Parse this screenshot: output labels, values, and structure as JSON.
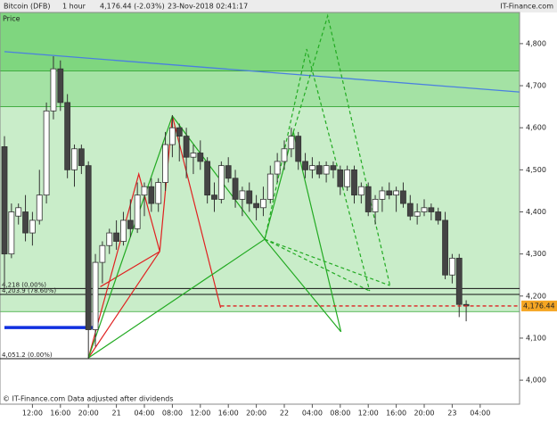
{
  "header": {
    "instrument": "Bitcoin (DFB)",
    "interval": "1 hour",
    "quote": "4,176.44 (-2.03%)",
    "timestamp": "23-Nov-2018 02:41:17",
    "brand": "IT-Finance.com"
  },
  "chart_data": {
    "type": "candlestick",
    "panel_label": "Price",
    "footer": "© IT-Finance.com  Data adjusted after dividends",
    "categories": [
      null,
      null,
      null,
      null,
      "12:00",
      null,
      null,
      null,
      "16:00",
      null,
      null,
      null,
      "20:00",
      null,
      null,
      null,
      "21",
      null,
      null,
      null,
      "04:00",
      null,
      null,
      null,
      "08:00",
      null,
      null,
      null,
      "12:00",
      null,
      null,
      null,
      "16:00",
      null,
      null,
      null,
      "20:00",
      null,
      null,
      null,
      "22",
      null,
      null,
      null,
      "04:00",
      null,
      null,
      null,
      "08:00",
      null,
      null,
      null,
      "12:00",
      null,
      null,
      null,
      "16:00",
      null,
      null,
      null,
      "20:00",
      null,
      null,
      null,
      "23",
      null,
      null,
      null,
      "04:00"
    ],
    "open": [
      4555,
      4300,
      4390,
      4400,
      4350,
      4380,
      4440,
      4640,
      4740,
      4660,
      4500,
      4550,
      4510,
      4120,
      4280,
      4320,
      4350,
      4330,
      4380,
      4360,
      4440,
      4460,
      4420,
      4470,
      4560,
      4600,
      4580,
      4530,
      4540,
      4520,
      4440,
      4430,
      4510,
      4480,
      4430,
      4450,
      4420,
      4410,
      4430,
      4490,
      4520,
      4550,
      4580,
      4520,
      4500,
      4510,
      4490,
      4510,
      4500,
      4460,
      4500,
      4440,
      4460,
      4400,
      4430,
      4450,
      4440,
      4450,
      4420,
      4390,
      4400,
      4410,
      4400,
      4380,
      4250,
      4290,
      4180,
      null,
      null
    ],
    "high": [
      4580,
      4420,
      4420,
      4440,
      4400,
      4500,
      4660,
      4770,
      4760,
      4680,
      4560,
      4560,
      4520,
      4300,
      4330,
      4360,
      4380,
      4400,
      4430,
      4470,
      4470,
      4480,
      4480,
      4590,
      4630,
      4610,
      4600,
      4560,
      4570,
      4530,
      4470,
      4520,
      4530,
      4500,
      4460,
      4470,
      4440,
      4460,
      4510,
      4540,
      4570,
      4600,
      4590,
      4540,
      4530,
      4520,
      4520,
      4520,
      4510,
      4510,
      4510,
      4470,
      4470,
      4440,
      4460,
      4470,
      4460,
      4470,
      4440,
      4420,
      4430,
      4420,
      4410,
      4400,
      4300,
      4300,
      4190,
      null,
      null
    ],
    "low": [
      4215,
      4290,
      4370,
      4330,
      4320,
      4370,
      4420,
      4620,
      4640,
      4480,
      4460,
      4490,
      4051,
      4080,
      4230,
      4300,
      4310,
      4320,
      4340,
      4350,
      4390,
      4400,
      4400,
      4450,
      4530,
      4520,
      4480,
      4490,
      4500,
      4420,
      4400,
      4420,
      4470,
      4410,
      4390,
      4400,
      4380,
      4390,
      4420,
      4470,
      4500,
      4530,
      4500,
      4480,
      4480,
      4480,
      4470,
      4480,
      4440,
      4450,
      4420,
      4420,
      4390,
      4370,
      4400,
      4430,
      4400,
      4410,
      4380,
      4370,
      4390,
      4380,
      4370,
      4240,
      4230,
      4150,
      4140,
      null,
      null
    ],
    "close": [
      4300,
      4400,
      4410,
      4350,
      4380,
      4440,
      4640,
      4740,
      4660,
      4500,
      4550,
      4510,
      4120,
      4280,
      4320,
      4350,
      4330,
      4380,
      4360,
      4440,
      4460,
      4420,
      4470,
      4560,
      4600,
      4580,
      4530,
      4540,
      4520,
      4440,
      4430,
      4510,
      4480,
      4430,
      4450,
      4420,
      4410,
      4430,
      4490,
      4520,
      4550,
      4580,
      4520,
      4500,
      4510,
      4490,
      4510,
      4500,
      4460,
      4500,
      4440,
      4460,
      4400,
      4430,
      4450,
      4440,
      4450,
      4420,
      4390,
      4400,
      4410,
      4400,
      4380,
      4250,
      4290,
      4180,
      4176.44,
      null,
      null
    ],
    "up_color": "#ffffff",
    "down_color": "#444444",
    "ylim": [
      3943,
      4874
    ],
    "yticks": [
      {
        "value": 4000,
        "label": "4,000"
      },
      {
        "value": 4100,
        "label": "4,100"
      },
      {
        "value": 4200,
        "label": "4,200"
      },
      {
        "value": 4300,
        "label": "4,300"
      },
      {
        "value": 4400,
        "label": "4,400"
      },
      {
        "value": 4500,
        "label": "4,500"
      },
      {
        "value": 4600,
        "label": "4,600"
      },
      {
        "value": 4700,
        "label": "4,700"
      },
      {
        "value": 4800,
        "label": "4,800"
      }
    ],
    "zones": [
      {
        "from": 4735,
        "to": 4874,
        "color": "#7fd67f"
      },
      {
        "from": 4650,
        "to": 4735,
        "color": "#a4e2a4"
      },
      {
        "from": 4163,
        "to": 4650,
        "color": "#c9edc9"
      }
    ],
    "trendline": {
      "color": "#4a7fe0",
      "x": [
        0,
        73.6
      ],
      "y": [
        4781,
        4685
      ]
    },
    "levels": [
      {
        "value": 4218,
        "label": "4,218 (0.00%)"
      },
      {
        "value": 4203.9,
        "label": "4,203.9 (78.60%)"
      },
      {
        "value": 4051.2,
        "label": "4,051.2 (0.00%)"
      }
    ],
    "last_price": {
      "value": 4176.44,
      "label": "4,176.44",
      "from": 30.9,
      "color": "#dd2222"
    },
    "marker": {
      "from": 0,
      "to": 13.1,
      "value": 4125,
      "color": "#1030e0"
    },
    "patterns": [
      {
        "color": "#e02020",
        "dashed": false,
        "x": [
          12,
          19.2,
          22.2,
          24,
          30.9
        ],
        "y": [
          4053,
          4490,
          4306,
          4628,
          4172
        ]
      },
      {
        "color": "#e02020",
        "dashed": false,
        "x": [
          12,
          22.2
        ],
        "y": [
          4053,
          4306
        ]
      },
      {
        "color": "#e02020",
        "dashed": false,
        "x": [
          13.7,
          22.2
        ],
        "y": [
          4222,
          4306
        ]
      },
      {
        "color": "#22aa22",
        "dashed": false,
        "x": [
          12,
          24,
          37.2,
          41.3,
          48.1
        ],
        "y": [
          4053,
          4628,
          4335,
          4590,
          4115
        ]
      },
      {
        "color": "#22aa22",
        "dashed": false,
        "x": [
          12,
          37.2,
          48.1
        ],
        "y": [
          4053,
          4335,
          4115
        ]
      },
      {
        "color": "#22aa22",
        "dashed": true,
        "x": [
          37.2,
          43.2,
          52.2
        ],
        "y": [
          4335,
          4787,
          4212
        ]
      },
      {
        "color": "#22aa22",
        "dashed": true,
        "x": [
          41.3,
          46.2,
          55.1
        ],
        "y": [
          4590,
          4866,
          4225
        ]
      },
      {
        "color": "#22aa22",
        "dashed": true,
        "x": [
          37.2,
          52.2
        ],
        "y": [
          4335,
          4212
        ]
      },
      {
        "color": "#22aa22",
        "dashed": true,
        "x": [
          37.2,
          55.1
        ],
        "y": [
          4335,
          4225
        ]
      }
    ]
  }
}
